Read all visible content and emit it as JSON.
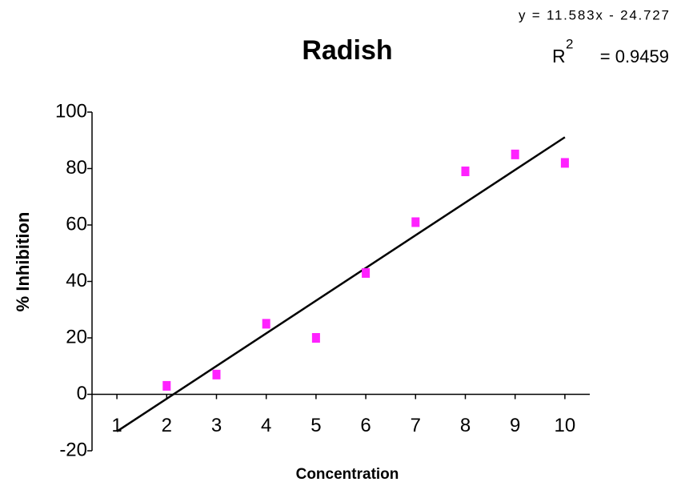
{
  "chart_data": {
    "type": "scatter",
    "title": "Radish",
    "equation": "y = 11.583x - 24.727",
    "r_squared": {
      "symbol": "R",
      "power": "2",
      "text": "= 0.9459"
    },
    "x_label": "Concentration",
    "y_label": "% Inhibition",
    "x": [
      2,
      3,
      4,
      5,
      6,
      7,
      8,
      9,
      10
    ],
    "values": [
      3,
      7,
      25,
      20,
      43,
      61,
      79,
      85,
      82
    ],
    "color": "#ff22ff",
    "trendline": {
      "slope": 11.583,
      "intercept": -24.727,
      "x": [
        1,
        10
      ],
      "color": "#000000"
    },
    "xlim": [
      0.5,
      10.5
    ],
    "xticks": [
      1,
      2,
      3,
      4,
      5,
      6,
      7,
      8,
      9,
      10
    ],
    "ylim": [
      -20,
      100
    ],
    "yticks": [
      -20,
      0,
      20,
      40,
      60,
      80,
      100
    ]
  }
}
